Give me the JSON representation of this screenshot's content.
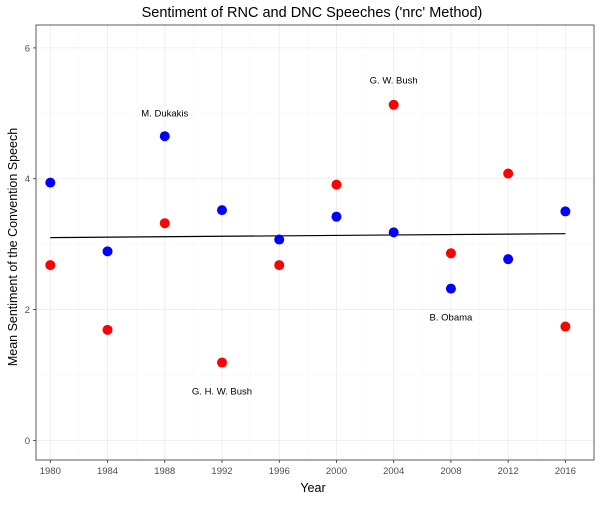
{
  "chart_data": {
    "type": "scatter",
    "title": "Sentiment of RNC and DNC Speeches ('nrc' Method)",
    "xlabel": "Year",
    "ylabel": "Mean Sentiment of the Convention Speech",
    "xlim": [
      1979.0,
      2018.0
    ],
    "ylim": [
      -0.3,
      6.35
    ],
    "xticks": [
      1980,
      1984,
      1988,
      1992,
      1996,
      2000,
      2004,
      2008,
      2012,
      2016
    ],
    "yticks": [
      0,
      2,
      4,
      6
    ],
    "grid": true,
    "legend": "none",
    "series": [
      {
        "color": "#0000ff",
        "points": [
          {
            "x": 1980,
            "y": 3.94
          },
          {
            "x": 1984,
            "y": 2.89
          },
          {
            "x": 1988,
            "y": 4.65
          },
          {
            "x": 1992,
            "y": 3.52
          },
          {
            "x": 1996,
            "y": 3.07
          },
          {
            "x": 2000,
            "y": 3.42
          },
          {
            "x": 2004,
            "y": 3.18
          },
          {
            "x": 2008,
            "y": 2.32
          },
          {
            "x": 2012,
            "y": 2.77
          },
          {
            "x": 2016,
            "y": 3.5
          }
        ]
      },
      {
        "color": "#ff0000",
        "points": [
          {
            "x": 1980,
            "y": 2.68
          },
          {
            "x": 1984,
            "y": 1.69
          },
          {
            "x": 1988,
            "y": 3.32
          },
          {
            "x": 1992,
            "y": 1.19
          },
          {
            "x": 1996,
            "y": 2.68
          },
          {
            "x": 2000,
            "y": 3.91
          },
          {
            "x": 2004,
            "y": 5.13
          },
          {
            "x": 2008,
            "y": 2.86
          },
          {
            "x": 2012,
            "y": 4.08
          },
          {
            "x": 2016,
            "y": 1.74
          }
        ]
      }
    ],
    "trend_line": {
      "x": [
        1980,
        2016
      ],
      "y": [
        3.1,
        3.16
      ],
      "color": "#000000"
    },
    "annotations": [
      {
        "text": "M. Dukakis",
        "x": 1988,
        "y": 5.0
      },
      {
        "text": "G. W. Bush",
        "x": 2004,
        "y": 5.5
      },
      {
        "text": "B. Obama",
        "x": 2008,
        "y": 1.88
      },
      {
        "text": "G. H. W. Bush",
        "x": 1992,
        "y": 0.75
      }
    ]
  }
}
